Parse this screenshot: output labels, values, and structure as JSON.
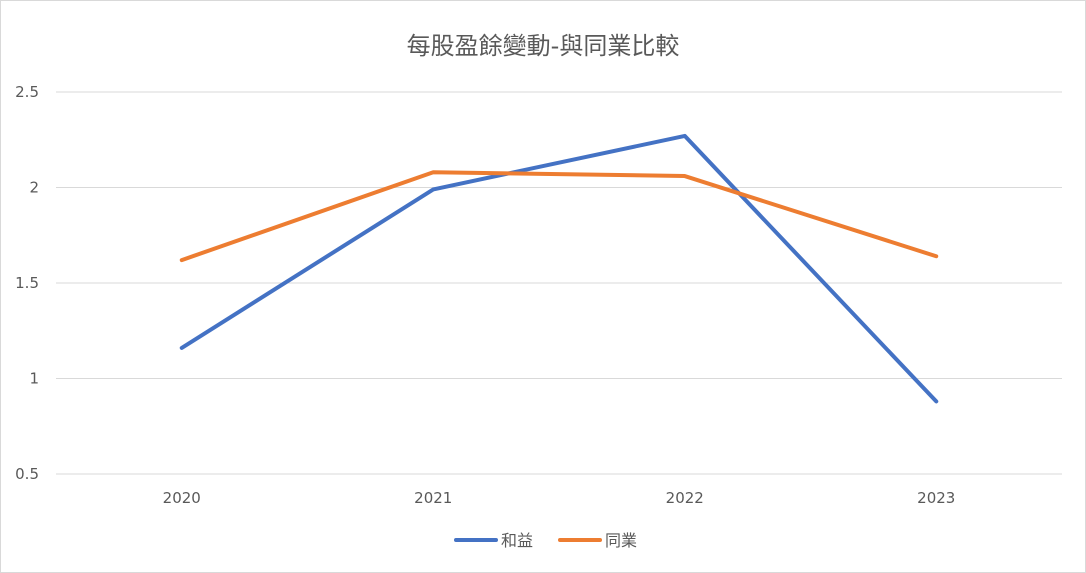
{
  "chart_data": {
    "type": "line",
    "title": "每股盈餘變動-與同業比較",
    "categories": [
      "2020",
      "2021",
      "2022",
      "2023"
    ],
    "series": [
      {
        "name": "和益",
        "color": "#4472c4",
        "values": [
          1.16,
          1.99,
          2.27,
          0.88
        ]
      },
      {
        "name": "同業",
        "color": "#ed7d31",
        "values": [
          1.62,
          2.08,
          2.06,
          1.64
        ]
      }
    ],
    "ylim": [
      0.5,
      2.5
    ],
    "yticks": [
      "0.5",
      "1",
      "1.5",
      "2",
      "2.5"
    ],
    "grid": true,
    "legend_position": "bottom"
  }
}
